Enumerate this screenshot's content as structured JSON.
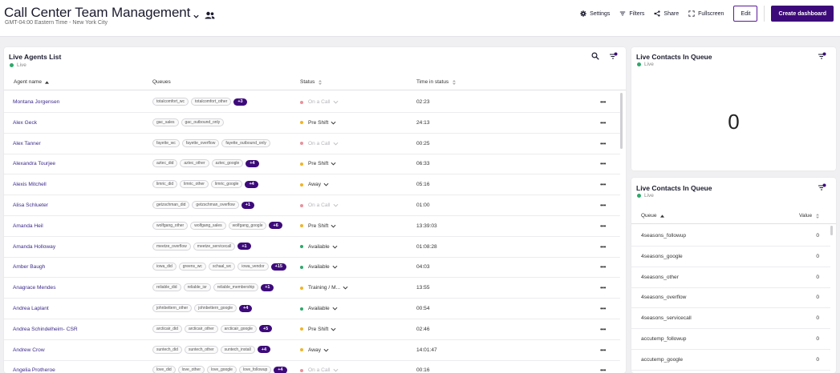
{
  "header": {
    "title": "Call Center Team Management",
    "timezone": "GMT-04:00 Eastern Time - New York City",
    "toolbar": {
      "settings": "Settings",
      "filters": "Filters",
      "share": "Share",
      "fullscreen": "Fullscreen",
      "edit": "Edit",
      "create": "Create dashboard"
    }
  },
  "colors": {
    "accent": "#3d0a7a",
    "live": "#2fa86b",
    "on_call": "#e8919b",
    "pre_shift": "#f0b429",
    "available": "#2fa86b",
    "away": "#f0b429",
    "training": "#f0b429"
  },
  "agents_panel": {
    "title": "Live Agents List",
    "live_label": "Live",
    "columns": {
      "agent": "Agent name",
      "queues": "Queues",
      "status": "Status",
      "time": "Time in status"
    },
    "rows": [
      {
        "name": "Montana Jorgensen",
        "queues": [
          "totalcomfort_wc",
          "totalcomfort_other"
        ],
        "more": "+3",
        "status": "On a Call",
        "status_type": "on_call",
        "time": "02:23"
      },
      {
        "name": "Alex Geck",
        "queues": [
          "gac_sales",
          "gac_outbound_only"
        ],
        "more": "",
        "status": "Pre Shift",
        "status_type": "pre_shift",
        "time": "24:13"
      },
      {
        "name": "Alex Tanner",
        "queues": [
          "fayette_wc",
          "fayette_overflow",
          "fayette_outbound_only"
        ],
        "more": "",
        "status": "On a Call",
        "status_type": "on_call",
        "time": "00:25"
      },
      {
        "name": "Alexandra Tourjee",
        "queues": [
          "aztec_did",
          "aztec_other",
          "aztec_google"
        ],
        "more": "+4",
        "status": "Pre Shift",
        "status_type": "pre_shift",
        "time": "06:33"
      },
      {
        "name": "Alexis Mitchell",
        "queues": [
          "limric_did",
          "limric_other",
          "limric_google"
        ],
        "more": "+4",
        "status": "Away",
        "status_type": "away",
        "time": "05:16"
      },
      {
        "name": "Alisa Schlueter",
        "queues": [
          "getzschman_did",
          "getzschman_overflow"
        ],
        "more": "+1",
        "status": "On a Call",
        "status_type": "on_call",
        "time": "01:00"
      },
      {
        "name": "Amanda Heil",
        "queues": [
          "wolfgang_other",
          "wolfgang_sales",
          "wolfgang_google"
        ],
        "more": "+6",
        "status": "Pre Shift",
        "status_type": "pre_shift",
        "time": "13:39:03"
      },
      {
        "name": "Amanda Holloway",
        "queues": [
          "meetze_overflow",
          "meetze_servicecall"
        ],
        "more": "+1",
        "status": "Available",
        "status_type": "available",
        "time": "01:08:28"
      },
      {
        "name": "Amber Baugh",
        "queues": [
          "iowa_did",
          "greens_wc",
          "schaal_wc",
          "iowa_vendor"
        ],
        "more": "+15",
        "status": "Available",
        "status_type": "available",
        "time": "04:03"
      },
      {
        "name": "Anagrace Mendes",
        "queues": [
          "reliable_did",
          "reliable_isr",
          "reliable_membership"
        ],
        "more": "+1",
        "status": "Training / M...",
        "status_type": "training",
        "time": "13:55"
      },
      {
        "name": "Andrea Laplant",
        "queues": [
          "johnbettern_other",
          "johnbettern_google"
        ],
        "more": "+4",
        "status": "Available",
        "status_type": "available",
        "time": "00:54"
      },
      {
        "name": "Andrea Schindelheim- CSR",
        "queues": [
          "arcticair_did",
          "arcticair_other",
          "arcticair_google"
        ],
        "more": "+5",
        "status": "Pre Shift",
        "status_type": "pre_shift",
        "time": "02:46"
      },
      {
        "name": "Andrew Crow",
        "queues": [
          "suntech_did",
          "suntech_other",
          "suntech_install"
        ],
        "more": "+4",
        "status": "Away",
        "status_type": "away",
        "time": "14:01:47"
      },
      {
        "name": "Angelia Protheroe",
        "queues": [
          "love_did",
          "love_other",
          "love_google",
          "love_followup"
        ],
        "more": "+4",
        "status": "On a Call",
        "status_type": "on_call",
        "time": "00:16"
      }
    ]
  },
  "contacts_panel_1": {
    "title": "Live Contacts In Queue",
    "live_label": "Live",
    "value": "0"
  },
  "contacts_panel_2": {
    "title": "Live Contacts In Queue",
    "live_label": "Live",
    "columns": {
      "queue": "Queue",
      "value": "Value"
    },
    "rows": [
      {
        "queue": "4seasons_followup",
        "value": "0"
      },
      {
        "queue": "4seasons_google",
        "value": "0"
      },
      {
        "queue": "4seasons_other",
        "value": "0"
      },
      {
        "queue": "4seasons_overflow",
        "value": "0"
      },
      {
        "queue": "4seasons_servicecall",
        "value": "0"
      },
      {
        "queue": "accutemp_followup",
        "value": "0"
      },
      {
        "queue": "accutemp_google",
        "value": "0"
      }
    ]
  }
}
